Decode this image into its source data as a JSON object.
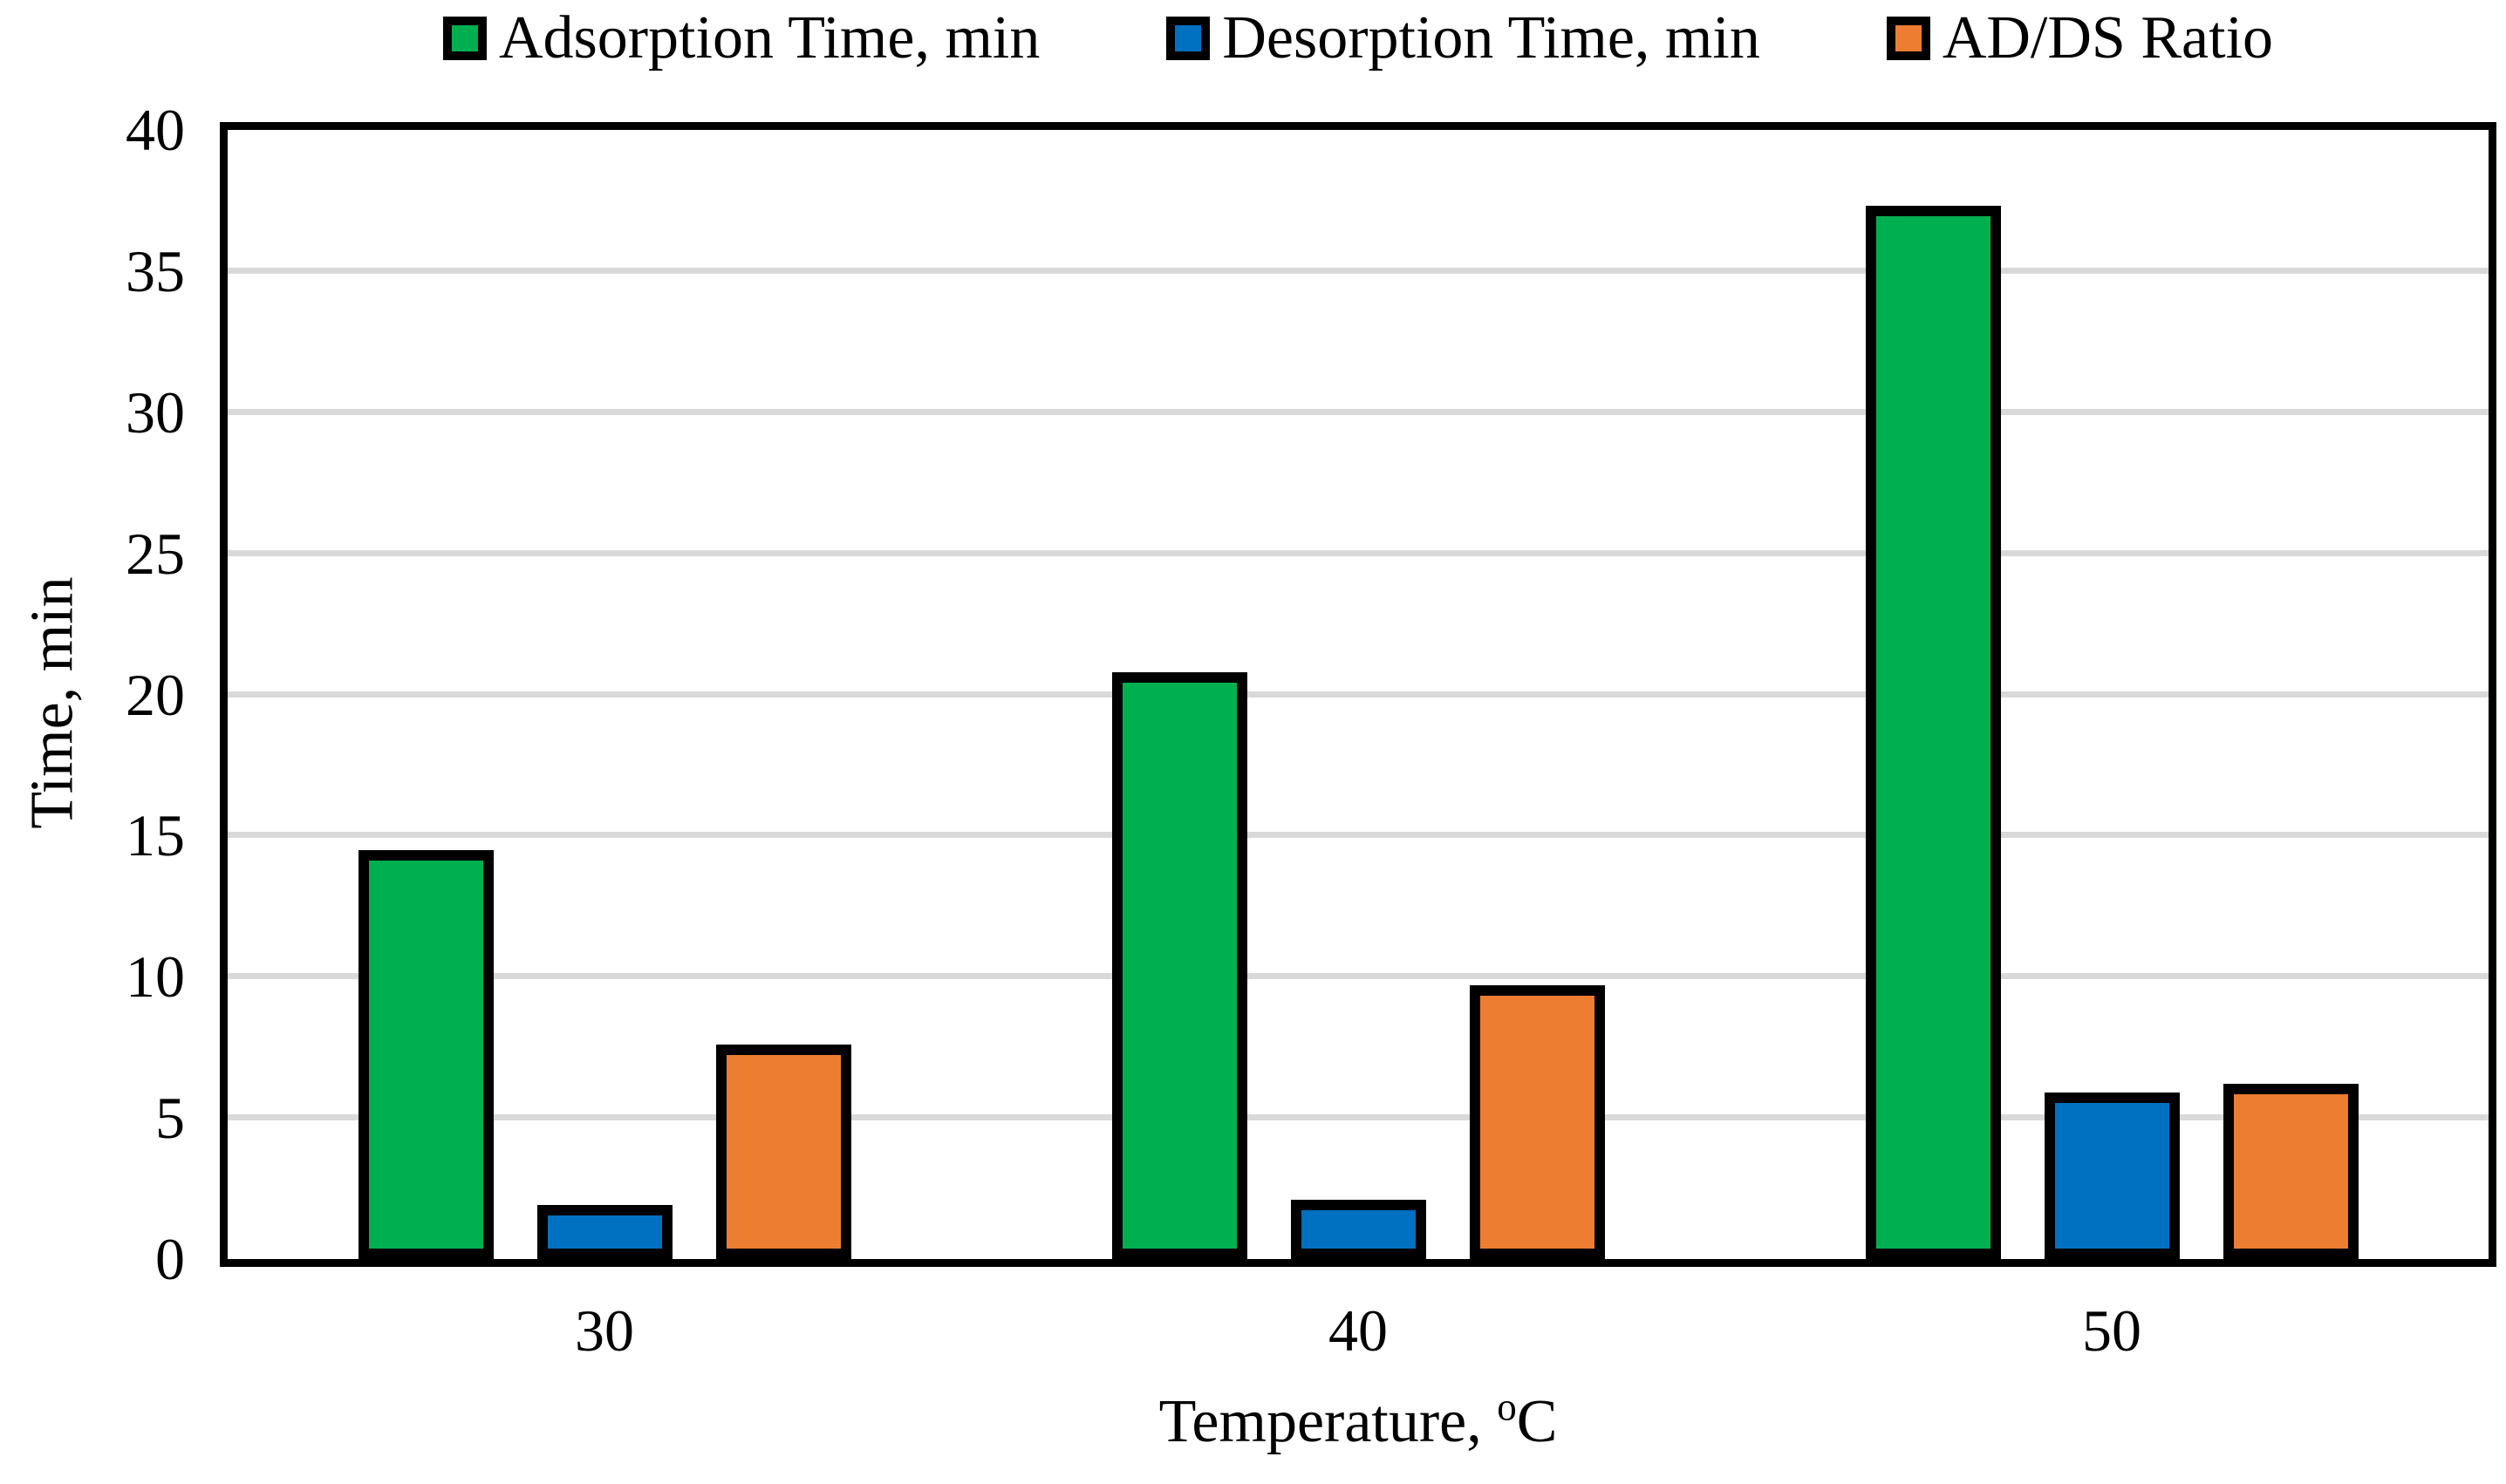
{
  "chart_data": {
    "type": "bar",
    "title": "",
    "categories": [
      "30",
      "40",
      "50"
    ],
    "series": [
      {
        "name": "Adsorption Time, min",
        "color": "#00B050",
        "values": [
          14.5,
          20.8,
          37.3
        ]
      },
      {
        "name": "Desorption Time, min",
        "color": "#0070C0",
        "values": [
          1.9,
          2.1,
          5.9
        ]
      },
      {
        "name": "AD/DS Ratio",
        "color": "#ED7D31",
        "values": [
          7.6,
          9.7,
          6.2
        ]
      }
    ],
    "xlabel": "Temperature, °C",
    "ylabel": "Time, min",
    "ylim": [
      0,
      40
    ],
    "ytick_step": 5,
    "ytick_labels": [
      "0",
      "5",
      "10",
      "15",
      "20",
      "25",
      "30",
      "35",
      "40"
    ],
    "grid": true,
    "gridline_color": "#D9D9D9",
    "frame_color": "#000000",
    "legend_position": "top"
  },
  "labels": {
    "xlabel_prefix": "Temperature, ",
    "xlabel_sup": "o",
    "xlabel_unit": "C"
  }
}
